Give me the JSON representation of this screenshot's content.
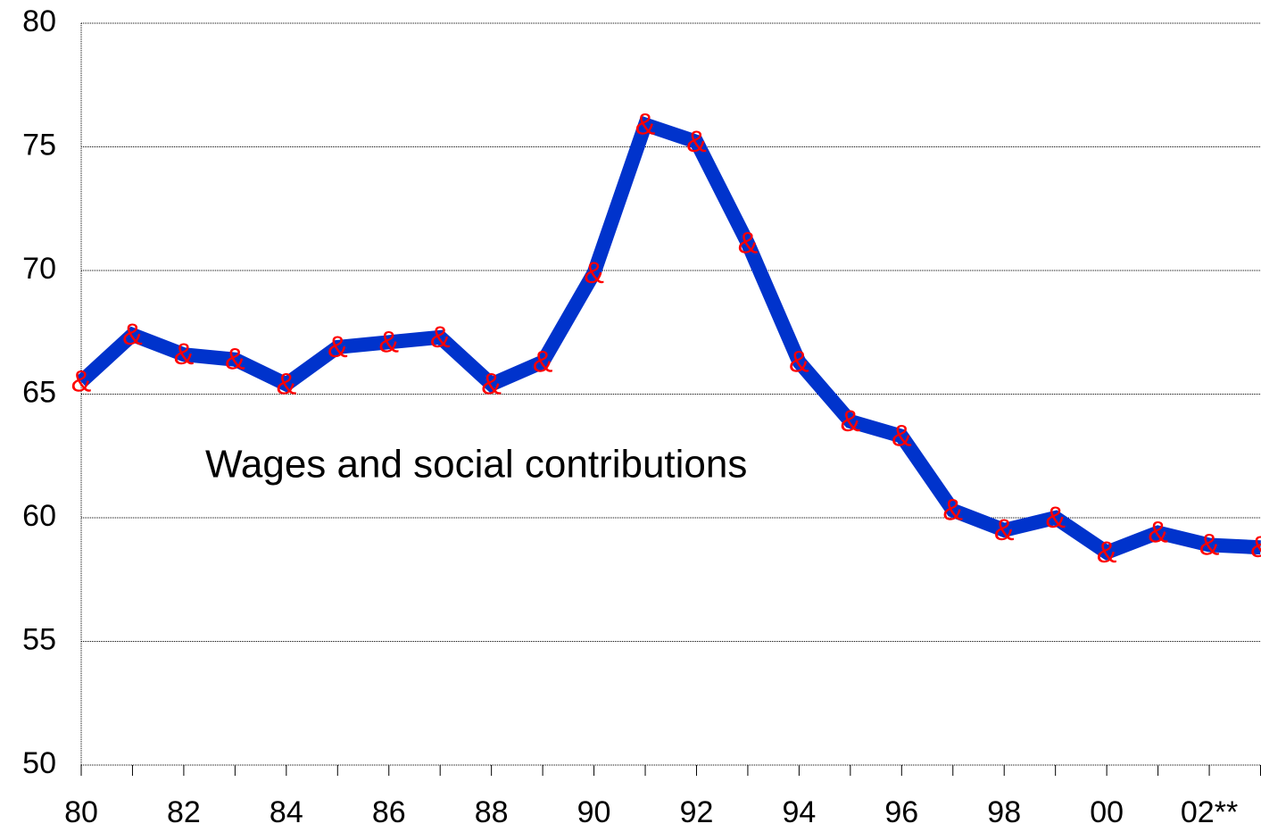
{
  "chart_data": {
    "type": "line",
    "categories": [
      "80",
      null,
      "82",
      null,
      "84",
      null,
      "86",
      null,
      "88",
      null,
      "90",
      null,
      "92",
      null,
      "94",
      null,
      "96",
      null,
      "98",
      null,
      "00",
      null,
      "02**",
      null
    ],
    "series": [
      {
        "name": "Wages and social contributions",
        "color": "#0033cc",
        "values": [
          65.5,
          67.4,
          66.6,
          66.4,
          65.4,
          66.9,
          67.1,
          67.3,
          65.4,
          66.3,
          69.9,
          75.9,
          75.2,
          71.1,
          66.3,
          63.9,
          63.3,
          60.3,
          59.5,
          60.0,
          58.6,
          59.4,
          58.9,
          58.8
        ]
      }
    ],
    "marker": "&",
    "marker_color": "#ff0000",
    "ylim": [
      50,
      80
    ],
    "yticks": [
      50,
      55,
      60,
      65,
      70,
      75,
      80
    ],
    "grid": true
  }
}
